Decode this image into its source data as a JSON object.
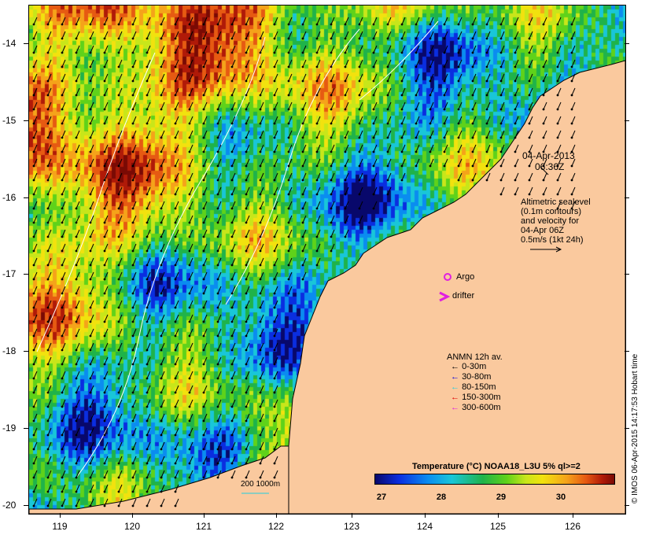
{
  "map": {
    "lat_labels": [
      "-14",
      "-15",
      "-16",
      "-17",
      "-18",
      "-19",
      "-20"
    ],
    "lon_labels": [
      "119",
      "120",
      "121",
      "122",
      "123",
      "124",
      "125",
      "126"
    ],
    "date": "04-Apr-2013",
    "time": "06:36Z",
    "sealevel_note": [
      "Altimetric sealevel",
      "(0.1m contours)",
      "and velocity for",
      "04-Apr 06Z",
      "0.5m/s (1kt 24h)"
    ],
    "argo_label": "Argo",
    "drifter_label": "drifter",
    "scale_label": "200  1000m",
    "credit": "© IMOS 06-Apr-2015 14:17:53 Hobart time",
    "colors": {
      "land": "#fac99e",
      "argo": "#e020e0",
      "drifter": "#e020e0"
    }
  },
  "anmn_legend": {
    "title": "ANMN 12h av.",
    "items": [
      {
        "label": "0-30m",
        "color": "#000000"
      },
      {
        "label": "30-80m",
        "color": "#0000e0"
      },
      {
        "label": "80-150m",
        "color": "#20d0e0"
      },
      {
        "label": "150-300m",
        "color": "#e00000"
      },
      {
        "label": "300-600m",
        "color": "#e020e0"
      }
    ]
  },
  "colorbar": {
    "title": "Temperature (°C) NOAA18_L3U 5% ql>=2",
    "ticks": [
      "27",
      "28",
      "29",
      "30"
    ]
  }
}
